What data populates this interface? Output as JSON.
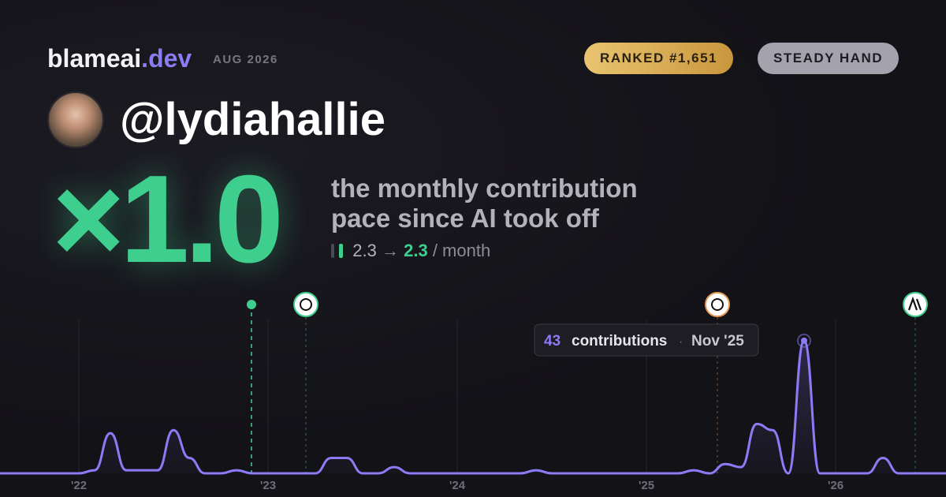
{
  "header": {
    "brand": "blameai",
    "brand_suffix": ".dev",
    "date": "AUG 2026",
    "rank_badge": "RANKED #1,651",
    "style_badge": "STEADY HAND"
  },
  "profile": {
    "username": "@lydiahallie"
  },
  "summary": {
    "multiplier": "×1.0",
    "description_line1": "the monthly contribution",
    "description_line2": "pace since AI took off",
    "pace_before": "2.3",
    "arrow": "→",
    "pace_after": "2.3",
    "pace_unit": "/ month"
  },
  "tooltip": {
    "label": "contributions",
    "separator": "·",
    "date": "Nov '25"
  },
  "chart_data": {
    "type": "area",
    "color": "#8b7cf6",
    "ylim": [
      0,
      45
    ],
    "grid": true,
    "categories": [
      null,
      null,
      null,
      null,
      null,
      "'22",
      null,
      null,
      null,
      null,
      null,
      null,
      null,
      null,
      null,
      null,
      null,
      "'23",
      null,
      null,
      null,
      null,
      null,
      null,
      null,
      null,
      null,
      null,
      null,
      "'24",
      null,
      null,
      null,
      null,
      null,
      null,
      null,
      null,
      null,
      null,
      null,
      "'25",
      null,
      null,
      null,
      null,
      null,
      null,
      null,
      null,
      null,
      null,
      null,
      "'26",
      null,
      null,
      null,
      null,
      null,
      null,
      null
    ],
    "series": [
      {
        "name": "contributions",
        "color": "#8b7cf6",
        "values": [
          0,
          0,
          0,
          0,
          0,
          0,
          1,
          13,
          1,
          1,
          1,
          14,
          5,
          0,
          0,
          1,
          0,
          0,
          0,
          0,
          0,
          5,
          5,
          0,
          0,
          2,
          0,
          0,
          0,
          0,
          0,
          0,
          0,
          0,
          1,
          0,
          0,
          0,
          0,
          0,
          0,
          0,
          0,
          0,
          1,
          0,
          3,
          2,
          16,
          14,
          0,
          43,
          0,
          0,
          0,
          0,
          5,
          0,
          0,
          0,
          0
        ]
      }
    ]
  }
}
